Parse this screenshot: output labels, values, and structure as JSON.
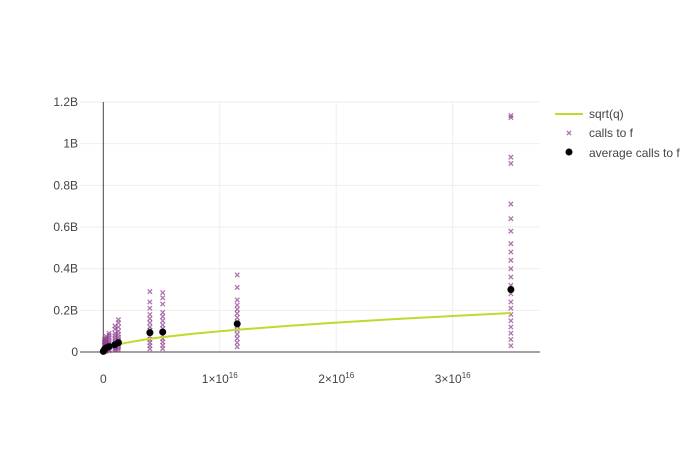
{
  "chart_data": {
    "type": "scatter",
    "title": "",
    "xlabel": "",
    "ylabel": "",
    "xlim": [
      -2000000000000000.0,
      3.75e+16
    ],
    "ylim": [
      0,
      1200000000.0
    ],
    "grid": true,
    "legend_position": "top-right",
    "x_ticks": [
      {
        "value": 0,
        "mantissa": "0",
        "exp": ""
      },
      {
        "value": 1e+16,
        "mantissa": "1×10",
        "exp": "16"
      },
      {
        "value": 2e+16,
        "mantissa": "2×10",
        "exp": "16"
      },
      {
        "value": 3e+16,
        "mantissa": "3×10",
        "exp": "16"
      }
    ],
    "y_ticks": [
      {
        "value": 0,
        "label": "0"
      },
      {
        "value": 200000000.0,
        "label": "0.2B"
      },
      {
        "value": 400000000.0,
        "label": "0.4B"
      },
      {
        "value": 600000000.0,
        "label": "0.6B"
      },
      {
        "value": 800000000.0,
        "label": "0.8B"
      },
      {
        "value": 1000000000.0,
        "label": "1B"
      },
      {
        "value": 1200000000.0,
        "label": "1.2B"
      }
    ],
    "series": [
      {
        "name": "sqrt(q)",
        "kind": "line",
        "color": "#c3d82a",
        "x": [
          0,
          100000000000000.0,
          250000000000000.0,
          500000000000000.0,
          1000000000000000.0,
          1300000000000000.0,
          2000000000000000.0,
          4000000000000000.0,
          5000000000000000.0,
          8000000000000000.0,
          1.15e+16,
          1.6e+16,
          2e+16,
          2.5e+16,
          3e+16,
          3.5e+16
        ],
        "y": [
          0,
          10000000.0,
          15800000.0,
          22400000.0,
          31600000.0,
          36000000.0,
          44700000.0,
          63200000.0,
          70700000.0,
          89400000.0,
          107000000.0,
          126000000.0,
          141000000.0,
          158000000.0,
          173000000.0,
          187000000.0
        ]
      },
      {
        "name": "calls to f",
        "kind": "markers-x",
        "color": "#8b3a8b",
        "groups": [
          {
            "x": 100000000000000.0,
            "y": [
              2000000.0,
              5000000.0,
              8000000.0,
              12000000.0,
              18000000.0,
              25000000.0,
              32000000.0,
              40000000.0,
              50000000.0,
              60000000.0
            ]
          },
          {
            "x": 250000000000000.0,
            "y": [
              4000000.0,
              8000000.0,
              13000000.0,
              20000000.0,
              28000000.0,
              36000000.0,
              45000000.0,
              55000000.0,
              65000000.0,
              75000000.0
            ]
          },
          {
            "x": 500000000000000.0,
            "y": [
              6000000.0,
              12000000.0,
              20000000.0,
              28000000.0,
              36000000.0,
              46000000.0,
              56000000.0,
              68000000.0,
              80000000.0,
              90000000.0
            ]
          },
          {
            "x": 1000000000000000.0,
            "y": [
              8000000.0,
              15000000.0,
              25000000.0,
              35000000.0,
              45000000.0,
              55000000.0,
              66000000.0,
              78000000.0,
              90000000.0,
              110000000.0,
              125000000.0
            ]
          },
          {
            "x": 1300000000000000.0,
            "y": [
              10000000.0,
              20000000.0,
              30000000.0,
              40000000.0,
              50000000.0,
              60000000.0,
              72000000.0,
              85000000.0,
              100000000.0,
              120000000.0,
              140000000.0,
              155000000.0
            ]
          },
          {
            "x": 4000000000000000.0,
            "y": [
              15000000.0,
              30000000.0,
              45000000.0,
              60000000.0,
              75000000.0,
              90000000.0,
              105000000.0,
              120000000.0,
              140000000.0,
              160000000.0,
              180000000.0,
              210000000.0,
              240000000.0,
              290000000.0
            ]
          },
          {
            "x": 5100000000000000.0,
            "y": [
              16000000.0,
              32000000.0,
              48000000.0,
              64000000.0,
              80000000.0,
              96000000.0,
              112000000.0,
              130000000.0,
              150000000.0,
              170000000.0,
              190000000.0,
              230000000.0,
              260000000.0,
              285000000.0
            ]
          },
          {
            "x": 1.15e+16,
            "y": [
              25000000.0,
              45000000.0,
              65000000.0,
              85000000.0,
              105000000.0,
              125000000.0,
              145000000.0,
              165000000.0,
              185000000.0,
              205000000.0,
              225000000.0,
              250000000.0,
              310000000.0,
              370000000.0
            ]
          },
          {
            "x": 3.5e+16,
            "y": [
              30000000.0,
              60000000.0,
              90000000.0,
              120000000.0,
              150000000.0,
              180000000.0,
              210000000.0,
              240000000.0,
              280000000.0,
              320000000.0,
              360000000.0,
              400000000.0,
              440000000.0,
              480000000.0,
              520000000.0,
              580000000.0,
              640000000.0,
              710000000.0,
              905000000.0,
              935000000.0,
              1125000000.0,
              1135000000.0
            ]
          }
        ]
      },
      {
        "name": "average calls to f",
        "kind": "markers-dot",
        "color": "#000000",
        "x": [
          0,
          100000000000000.0,
          250000000000000.0,
          500000000000000.0,
          1000000000000000.0,
          1300000000000000.0,
          4000000000000000.0,
          5100000000000000.0,
          1.15e+16,
          3.5e+16
        ],
        "y": [
          3000000.0,
          12000000.0,
          20000000.0,
          26000000.0,
          35000000.0,
          45000000.0,
          93000000.0,
          96000000.0,
          135000000.0,
          300000000.0
        ]
      }
    ]
  }
}
